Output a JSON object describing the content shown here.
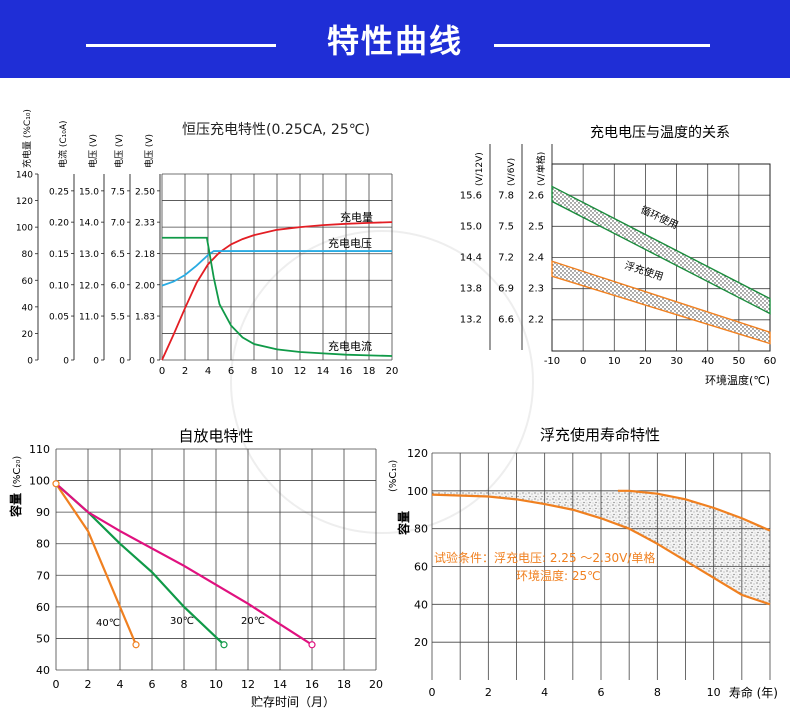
{
  "banner": {
    "title": "特性曲线"
  },
  "colors": {
    "banner": "#1f2ed6",
    "red": "#e31e24",
    "blue": "#29abe2",
    "green": "#109a48",
    "orange": "#f08020",
    "magenta": "#e0117f",
    "darkgreen": "#1a8c3c",
    "grid": "#444444"
  },
  "chart_data": [
    {
      "id": "charge",
      "type": "line",
      "title": "恒压充电特性(0.25CA, 25℃)",
      "xlabel": "",
      "x_ticks": [
        "0",
        "2",
        "4",
        "6",
        "8",
        "10",
        "12",
        "14",
        "16",
        "18",
        "20"
      ],
      "xlim": [
        0,
        20
      ],
      "ylim": [
        0,
        140
      ],
      "axes": [
        {
          "label": "充电量 (%C₁₀)",
          "ticks": [
            "0",
            "20",
            "40",
            "60",
            "80",
            "100",
            "120",
            "140"
          ]
        },
        {
          "label": "电流 (C₁₀A)",
          "ticks": [
            "0",
            "0.05",
            "0.10",
            "0.15",
            "0.20",
            "0.25"
          ]
        },
        {
          "label": "电压 (V)",
          "ticks": [
            "0",
            "11.0",
            "12.0",
            "13.0",
            "14.0",
            "15.0"
          ]
        },
        {
          "label": "电压 (V)",
          "ticks": [
            "0",
            "5.5",
            "6.0",
            "6.5",
            "7.0",
            "7.5"
          ]
        },
        {
          "label": "电压 (V)",
          "ticks": [
            "0",
            "1.83",
            "2.00",
            "2.18",
            "2.33",
            "2.50"
          ]
        }
      ],
      "series": [
        {
          "name": "充电量",
          "color": "red",
          "x": [
            0,
            1,
            2,
            3,
            4,
            5,
            6,
            7,
            8,
            10,
            12,
            14,
            16,
            18,
            20
          ],
          "y": [
            0,
            19,
            39,
            58,
            72,
            81,
            87,
            91,
            94,
            98,
            100,
            101.5,
            102.5,
            103.2,
            103.8
          ]
        },
        {
          "name": "充电电压",
          "color": "blue",
          "x": [
            0,
            1,
            2,
            3,
            4,
            4.5,
            5,
            8,
            12,
            16,
            20
          ],
          "y": [
            56,
            59,
            64,
            71,
            79,
            82,
            82,
            82,
            82,
            82,
            82
          ]
        },
        {
          "name": "充电电流",
          "color": "green",
          "x": [
            0,
            1,
            2,
            3,
            3.9,
            4.5,
            5,
            6,
            7,
            8,
            10,
            12,
            14,
            16,
            18,
            20
          ],
          "y": [
            92,
            92,
            92,
            92,
            92,
            62,
            42,
            26,
            17,
            12,
            8,
            6,
            5,
            4,
            3.5,
            3
          ]
        }
      ]
    },
    {
      "id": "voltage-temp",
      "type": "line",
      "title": "充电电压与温度的关系",
      "xlabel": "环境温度(℃)",
      "x_ticks": [
        "-10",
        "0",
        "10",
        "20",
        "30",
        "40",
        "50",
        "60"
      ],
      "xlim": [
        -10,
        60
      ],
      "ylim": [
        2.15,
        2.65
      ],
      "axes": [
        {
          "label": "(V/12V)",
          "ticks": [
            "13.2",
            "13.8",
            "14.4",
            "15.0",
            "15.6"
          ]
        },
        {
          "label": "(V/6V)",
          "ticks": [
            "6.6",
            "6.9",
            "7.2",
            "7.5",
            "7.8"
          ]
        },
        {
          "label": "(V/单格)",
          "ticks": [
            "2.2",
            "2.3",
            "2.4",
            "2.5",
            "2.6"
          ]
        }
      ],
      "bands": [
        {
          "name": "循环使用",
          "color": "darkgreen",
          "x": [
            -10,
            60
          ],
          "upper": [
            2.59,
            2.29
          ],
          "lower": [
            2.55,
            2.25
          ]
        },
        {
          "name": "浮充使用",
          "color": "orange",
          "x": [
            -10,
            60
          ],
          "upper": [
            2.39,
            2.2
          ],
          "lower": [
            2.35,
            2.17
          ]
        }
      ]
    },
    {
      "id": "self-discharge",
      "type": "line",
      "title": "自放电特性",
      "xlabel": "贮存时间（月）",
      "ylabel": "容量",
      "y_unit": "(%C₂₀)",
      "x_ticks": [
        "0",
        "2",
        "4",
        "6",
        "8",
        "10",
        "12",
        "14",
        "16",
        "18",
        "20"
      ],
      "y_ticks": [
        "40",
        "50",
        "60",
        "70",
        "80",
        "90",
        "100",
        "110"
      ],
      "xlim": [
        0,
        20
      ],
      "ylim": [
        40,
        110
      ],
      "series": [
        {
          "name": "40℃",
          "color": "orange",
          "x": [
            0,
            2,
            5
          ],
          "y": [
            99,
            84,
            48
          ]
        },
        {
          "name": "30℃",
          "color": "green",
          "x": [
            0,
            2,
            4,
            6,
            8,
            10.5
          ],
          "y": [
            99,
            90,
            80,
            71,
            60,
            48
          ]
        },
        {
          "name": "20℃",
          "color": "magenta",
          "x": [
            0,
            2,
            4,
            8,
            12,
            16
          ],
          "y": [
            99,
            90,
            84,
            73,
            61,
            48
          ]
        }
      ]
    },
    {
      "id": "float-life",
      "type": "area",
      "title": "浮充使用寿命特性",
      "xlabel": "寿命 (年)",
      "ylabel": "容量",
      "y_unit": "(%C₁₀)",
      "x_ticks": [
        "0",
        "2",
        "4",
        "6",
        "8",
        "10"
      ],
      "y_ticks": [
        "20",
        "40",
        "60",
        "80",
        "100",
        "120"
      ],
      "xlim": [
        0,
        12
      ],
      "ylim": [
        0,
        120
      ],
      "annotations": [
        "试验条件：浮充电压: 2.25 ～2.30V/单格",
        "环境温度: 25℃"
      ],
      "series": [
        {
          "name": "",
          "color": "orange",
          "x": [
            0,
            2,
            3,
            4,
            5,
            6,
            7,
            8,
            9,
            10,
            11,
            12
          ],
          "y": [
            98,
            97,
            95.5,
            93,
            90,
            85.5,
            80,
            72,
            63,
            54,
            45,
            40
          ]
        },
        {
          "name": "",
          "color": "orange",
          "x": [
            6.6,
            7,
            8,
            9,
            10,
            11,
            12
          ],
          "y": [
            100,
            100,
            98.5,
            95.5,
            91,
            85.5,
            79
          ]
        }
      ]
    }
  ]
}
